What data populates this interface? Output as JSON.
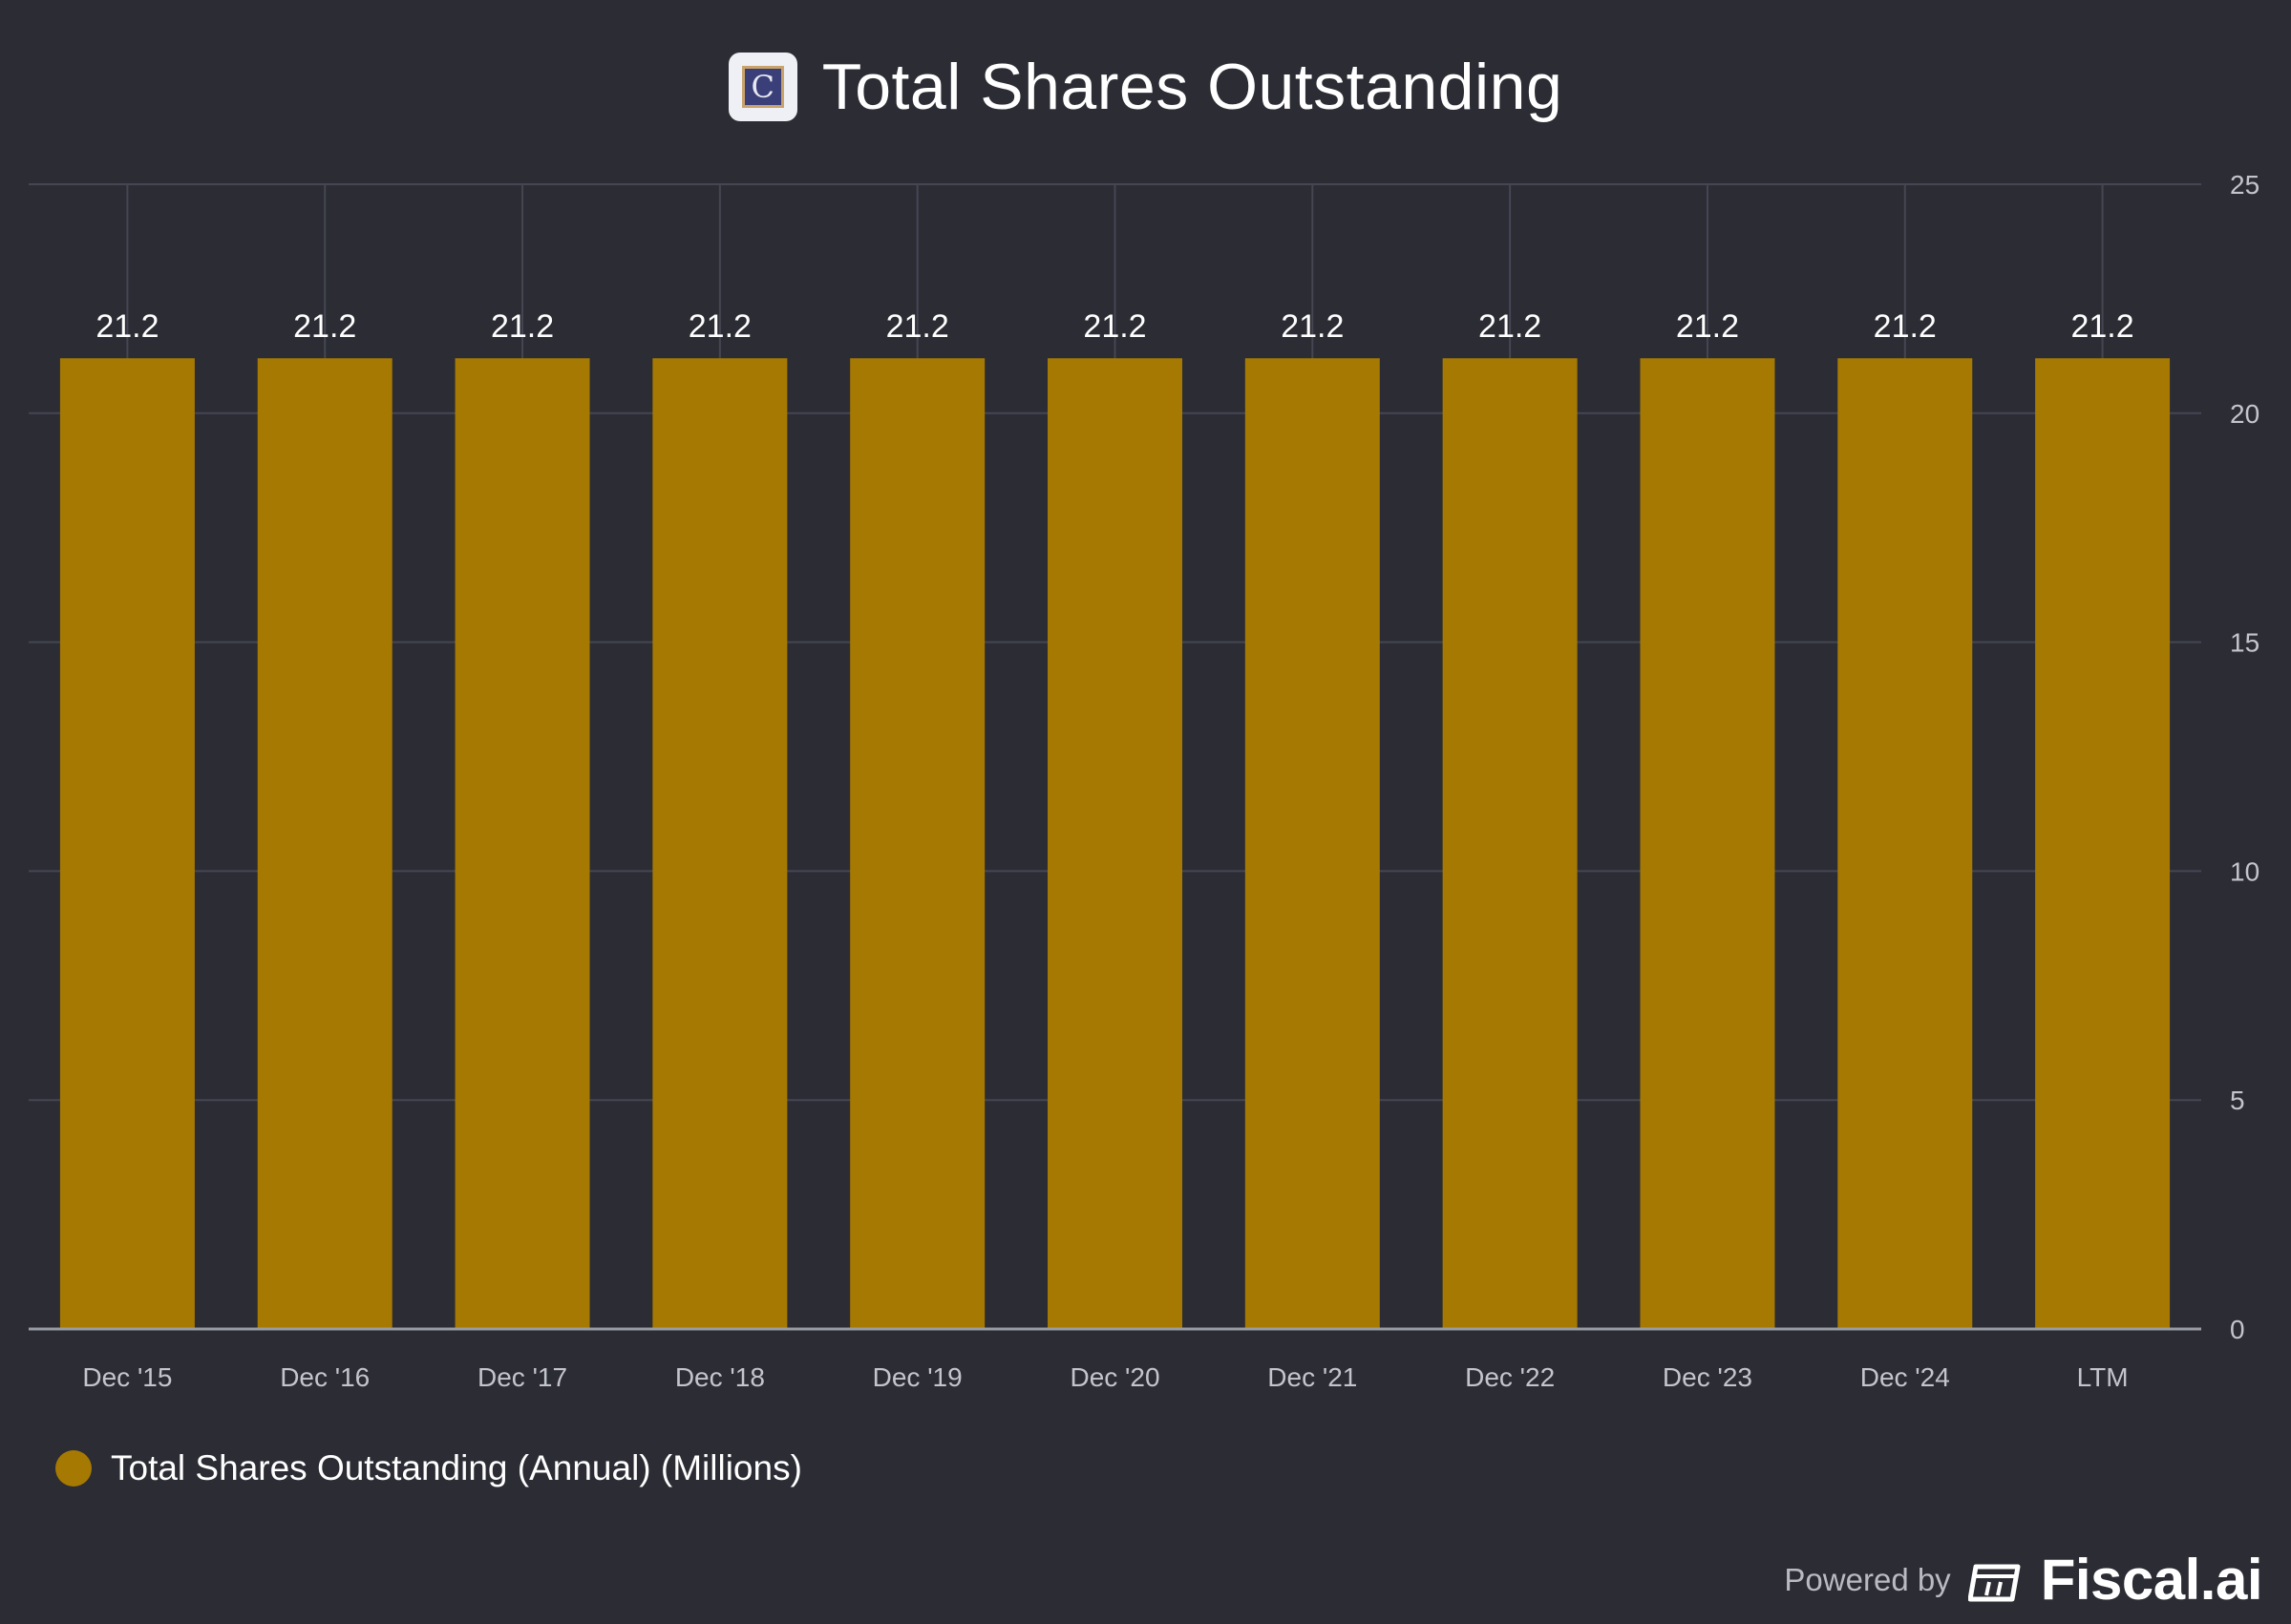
{
  "header": {
    "title": "Total Shares Outstanding",
    "logo_letter": "C"
  },
  "chart_data": {
    "type": "bar",
    "title": "Total Shares Outstanding",
    "categories": [
      "Dec '15",
      "Dec '16",
      "Dec '17",
      "Dec '18",
      "Dec '19",
      "Dec '20",
      "Dec '21",
      "Dec '22",
      "Dec '23",
      "Dec '24",
      "LTM"
    ],
    "series": [
      {
        "name": "Total Shares Outstanding (Annual) (Millions)",
        "values": [
          21.2,
          21.2,
          21.2,
          21.2,
          21.2,
          21.2,
          21.2,
          21.2,
          21.2,
          21.2,
          21.2
        ],
        "labels": [
          "21.2",
          "21.2",
          "21.2",
          "21.2",
          "21.2",
          "21.2",
          "21.2",
          "21.2",
          "21.2",
          "21.2",
          "21.2"
        ]
      }
    ],
    "y_ticks": [
      0,
      5,
      10,
      15,
      20,
      25
    ],
    "ylim": [
      0,
      25
    ],
    "y_axis_side": "right",
    "grid": true,
    "legend_position": "bottom-left",
    "xlabel": "",
    "ylabel": ""
  },
  "legend": {
    "label": "Total Shares Outstanding (Annual) (Millions)"
  },
  "footer": {
    "powered_by": "Powered by",
    "brand": "Fiscal.ai"
  },
  "colors": {
    "background": "#2b2c34",
    "bar": "#a67902",
    "grid": "#454652",
    "axis": "#9a9ba5",
    "tick_label": "#c4c5cc"
  }
}
